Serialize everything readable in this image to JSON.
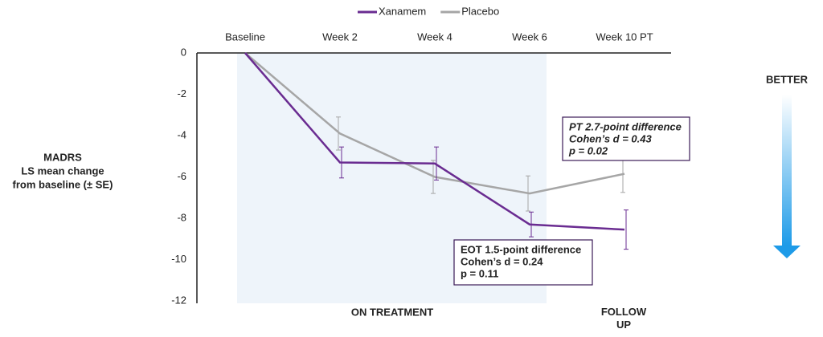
{
  "chart_data": {
    "type": "line",
    "categories": [
      "Baseline",
      "Week 2",
      "Week 4",
      "Week 6",
      "Week 10 PT"
    ],
    "series": [
      {
        "name": "Xanamem",
        "color": "#6a2c91",
        "values": [
          0,
          -5.3,
          -5.35,
          -8.3,
          -8.55
        ],
        "errors": [
          null,
          0.75,
          0.8,
          0.6,
          0.95
        ]
      },
      {
        "name": "Placebo",
        "color": "#a6a6a6",
        "values": [
          0,
          -3.9,
          -6.0,
          -6.8,
          -5.85
        ],
        "errors": [
          null,
          0.8,
          0.8,
          0.85,
          0.9
        ]
      }
    ],
    "ylim": [
      -12,
      0
    ],
    "yticks": [
      0,
      -2,
      -4,
      -6,
      -8,
      -10,
      -12
    ],
    "ylabel": [
      "MADRS",
      "LS mean change",
      "from baseline (± SE)"
    ],
    "period_labels": [
      "ON TREATMENT",
      "FOLLOW UP"
    ],
    "direction_label": "BETTER",
    "annotations": [
      {
        "lines": [
          "EOT 1.5-point difference",
          "Cohen’s d = 0.24",
          "p = 0.11"
        ]
      },
      {
        "lines": [
          "PT 2.7-point difference",
          "Cohen’s d = 0.43",
          "p = 0.02"
        ]
      }
    ]
  }
}
